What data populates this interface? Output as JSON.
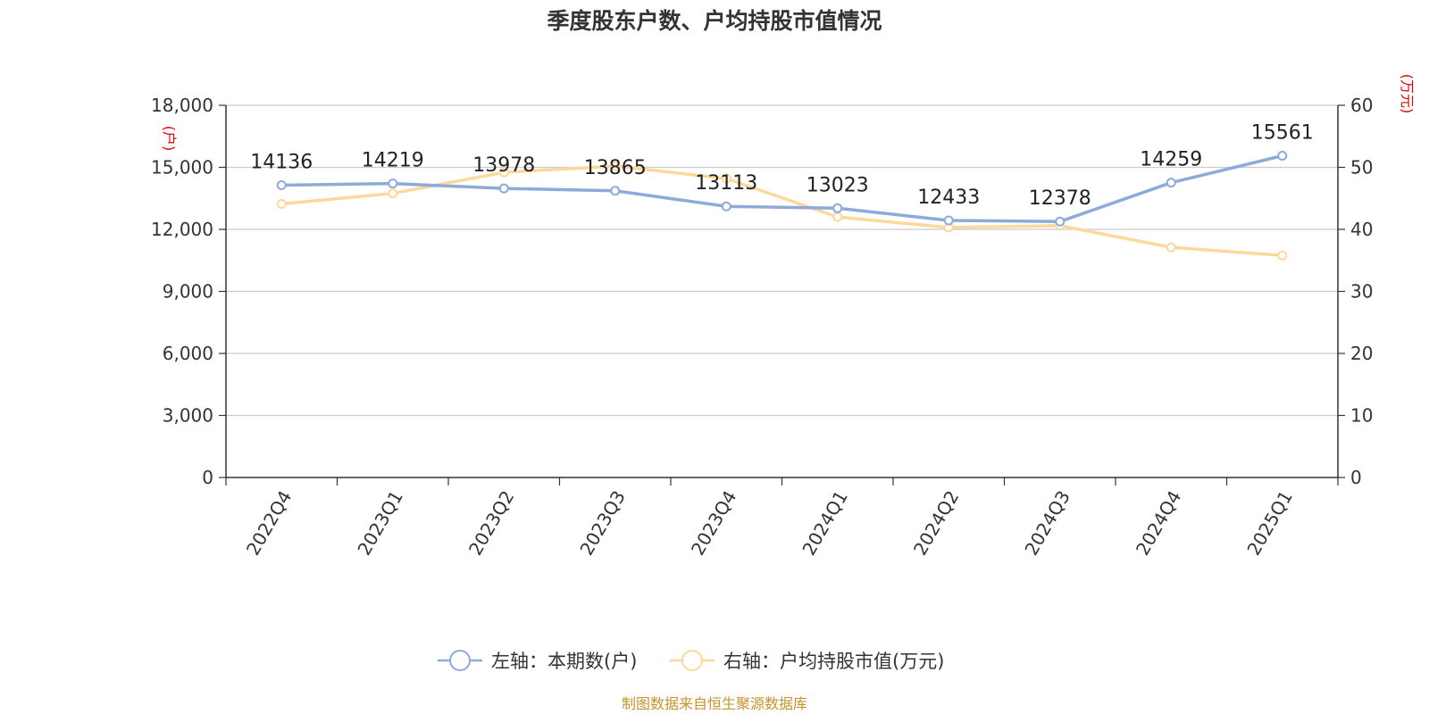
{
  "chart_data": {
    "type": "line",
    "title": "季度股东户数、户均持股市值情况",
    "categories": [
      "2022Q4",
      "2023Q1",
      "2023Q2",
      "2023Q3",
      "2023Q4",
      "2024Q1",
      "2024Q2",
      "2024Q3",
      "2024Q4",
      "2025Q1"
    ],
    "left_axis": {
      "unit": "(户)",
      "ylim": [
        0,
        18000
      ],
      "ticks": [
        0,
        3000,
        6000,
        9000,
        12000,
        15000,
        18000
      ],
      "tick_labels": [
        "0",
        "3,000",
        "6,000",
        "9,000",
        "12,000",
        "15,000",
        "18,000"
      ]
    },
    "right_axis": {
      "unit": "(万元)",
      "ylim": [
        0,
        60
      ],
      "ticks": [
        0,
        10,
        20,
        30,
        40,
        50,
        60
      ],
      "tick_labels": [
        "0",
        "10",
        "20",
        "30",
        "40",
        "50",
        "60"
      ]
    },
    "series": [
      {
        "name": "左轴：本期数(户)",
        "axis": "left",
        "color": "#8eaadb",
        "values": [
          14136,
          14219,
          13978,
          13865,
          13113,
          13023,
          12433,
          12378,
          14259,
          15561
        ],
        "data_labels": [
          "14136",
          "14219",
          "13978",
          "13865",
          "13113",
          "13023",
          "12433",
          "12378",
          "14259",
          "15561"
        ]
      },
      {
        "name": "右轴：户均持股市值(万元)",
        "axis": "right",
        "color": "#fdd89a",
        "values": [
          44.1,
          45.8,
          49.2,
          50.2,
          48.2,
          42.0,
          40.3,
          40.6,
          37.1,
          35.8
        ]
      }
    ],
    "grid": true,
    "legend_position": "bottom"
  },
  "source_text": "制图数据来自恒生聚源数据库"
}
